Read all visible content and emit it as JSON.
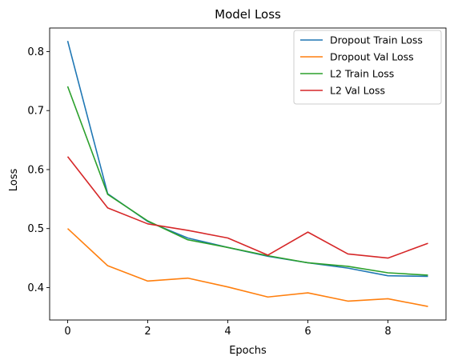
{
  "chart_data": {
    "type": "line",
    "title": "Model Loss",
    "xlabel": "Epochs",
    "ylabel": "Loss",
    "x": [
      0,
      1,
      2,
      3,
      4,
      5,
      6,
      7,
      8,
      9
    ],
    "xlim": [
      -0.45,
      9.45
    ],
    "ylim": [
      0.345,
      0.84
    ],
    "xticks": [
      0,
      2,
      4,
      6,
      8
    ],
    "yticks": [
      0.4,
      0.5,
      0.6,
      0.7,
      0.8
    ],
    "grid": false,
    "legend_position": "top-right",
    "series": [
      {
        "name": "Dropout Train Loss",
        "color": "#1f77b4",
        "values": [
          0.818,
          0.559,
          0.512,
          0.484,
          0.468,
          0.453,
          0.442,
          0.433,
          0.42,
          0.419
        ]
      },
      {
        "name": "Dropout Val Loss",
        "color": "#ff7f0e",
        "values": [
          0.5,
          0.437,
          0.411,
          0.416,
          0.401,
          0.384,
          0.391,
          0.377,
          0.381,
          0.368
        ]
      },
      {
        "name": "L2 Train Loss",
        "color": "#2ca02c",
        "values": [
          0.741,
          0.558,
          0.513,
          0.481,
          0.468,
          0.454,
          0.442,
          0.436,
          0.425,
          0.421
        ]
      },
      {
        "name": "L2 Val Loss",
        "color": "#d62728",
        "values": [
          0.622,
          0.535,
          0.508,
          0.497,
          0.484,
          0.455,
          0.494,
          0.457,
          0.45,
          0.475
        ]
      }
    ]
  }
}
